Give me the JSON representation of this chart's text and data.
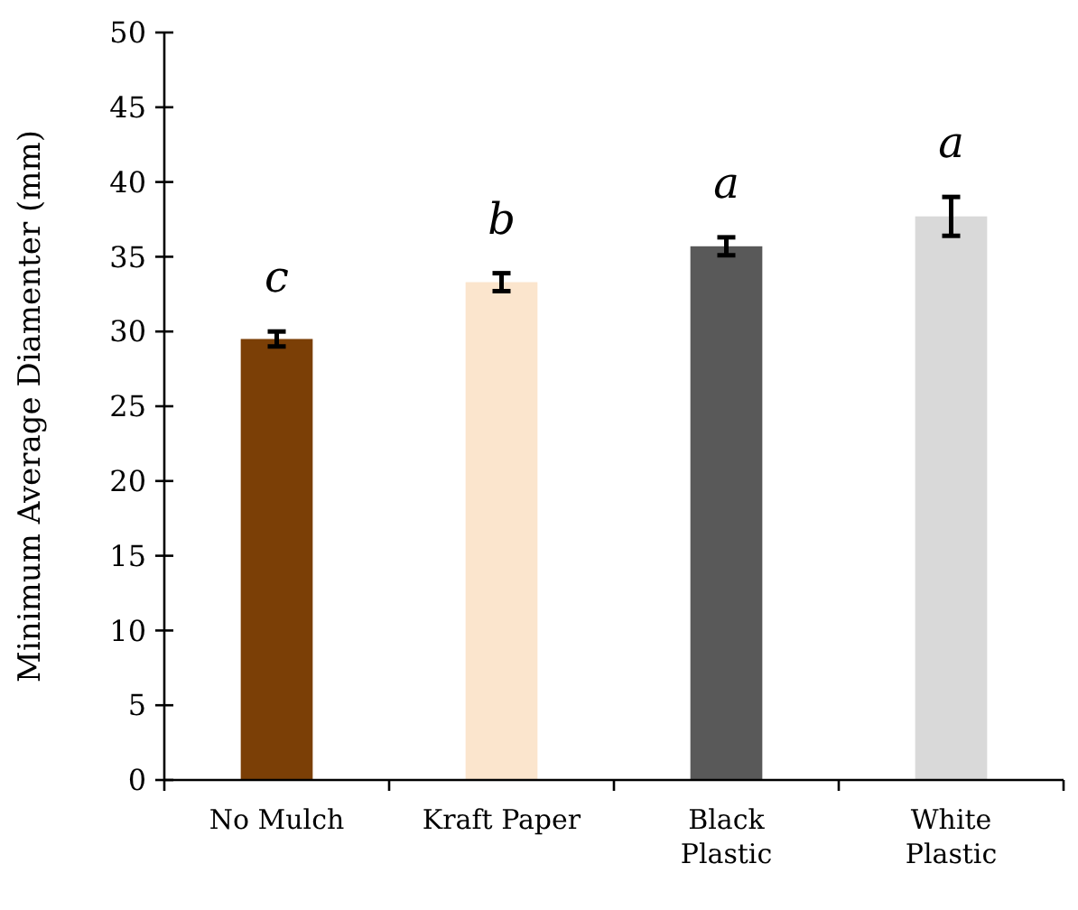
{
  "chart_data": {
    "type": "bar",
    "ylabel": "Minimum Average Diamenter (mm)",
    "categories": [
      "No Mulch",
      "Kraft Paper",
      "Black Plastic",
      "White Plastic"
    ],
    "values": [
      29.5,
      33.3,
      35.7,
      37.7
    ],
    "colors": [
      "#7b3f06",
      "#fbe5cd",
      "#595959",
      "#d9d9d9"
    ],
    "errors": [
      0.5,
      0.6,
      0.6,
      1.3
    ],
    "ylim": [
      0,
      50
    ],
    "yticks": [
      0,
      5,
      10,
      15,
      20,
      25,
      30,
      35,
      40,
      45,
      50
    ],
    "grid": false,
    "annotations": [
      "c",
      "b",
      "a",
      "a"
    ]
  }
}
